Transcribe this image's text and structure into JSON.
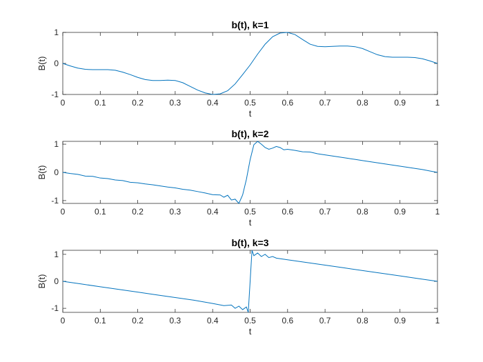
{
  "chart_data": [
    {
      "type": "line",
      "title": "b(t), k=1",
      "xlabel": "t",
      "ylabel": "B(t)",
      "xlim": [
        0,
        1
      ],
      "ylim": [
        -1,
        1
      ],
      "xticks": [
        "0",
        "0.1",
        "0.2",
        "0.3",
        "0.4",
        "0.5",
        "0.6",
        "0.7",
        "0.8",
        "0.9",
        "1"
      ],
      "yticks": [
        "-1",
        "0",
        "1"
      ],
      "grid": false,
      "color": "#0072BD",
      "series": [
        {
          "x": [
            0,
            0.02,
            0.04,
            0.06,
            0.08,
            0.1,
            0.12,
            0.14,
            0.16,
            0.18,
            0.2,
            0.22,
            0.24,
            0.26,
            0.28,
            0.3,
            0.32,
            0.34,
            0.36,
            0.38,
            0.4,
            0.42,
            0.44,
            0.46,
            0.48,
            0.5,
            0.52,
            0.54,
            0.56,
            0.58,
            0.6,
            0.62,
            0.64,
            0.66,
            0.68,
            0.7,
            0.72,
            0.74,
            0.76,
            0.78,
            0.8,
            0.82,
            0.84,
            0.86,
            0.88,
            0.9,
            0.92,
            0.94,
            0.96,
            0.98,
            1.0
          ],
          "y": [
            0.0,
            -0.08,
            -0.15,
            -0.19,
            -0.2,
            -0.2,
            -0.2,
            -0.22,
            -0.28,
            -0.36,
            -0.45,
            -0.52,
            -0.55,
            -0.55,
            -0.54,
            -0.55,
            -0.62,
            -0.74,
            -0.86,
            -0.95,
            -1.0,
            -0.98,
            -0.88,
            -0.66,
            -0.36,
            -0.05,
            0.3,
            0.62,
            0.86,
            0.98,
            1.0,
            0.93,
            0.77,
            0.62,
            0.55,
            0.54,
            0.55,
            0.56,
            0.56,
            0.54,
            0.48,
            0.38,
            0.28,
            0.22,
            0.2,
            0.2,
            0.2,
            0.19,
            0.15,
            0.08,
            0.0
          ]
        }
      ]
    },
    {
      "type": "line",
      "title": "b(t), k=2",
      "xlabel": "t",
      "ylabel": "B(t)",
      "xlim": [
        0,
        1
      ],
      "ylim": [
        -1.1,
        1.1
      ],
      "xticks": [
        "0",
        "0.1",
        "0.2",
        "0.3",
        "0.4",
        "0.5",
        "0.6",
        "0.7",
        "0.8",
        "0.9",
        "1"
      ],
      "yticks": [
        "-1",
        "0",
        "1"
      ],
      "grid": false,
      "color": "#0072BD",
      "series": [
        {
          "x": [
            0,
            0.02,
            0.04,
            0.06,
            0.08,
            0.1,
            0.12,
            0.14,
            0.16,
            0.18,
            0.2,
            0.22,
            0.24,
            0.26,
            0.28,
            0.3,
            0.32,
            0.34,
            0.36,
            0.38,
            0.4,
            0.42,
            0.43,
            0.44,
            0.45,
            0.46,
            0.47,
            0.48,
            0.49,
            0.5,
            0.51,
            0.52,
            0.53,
            0.54,
            0.55,
            0.56,
            0.57,
            0.58,
            0.59,
            0.6,
            0.62,
            0.64,
            0.66,
            0.68,
            0.7,
            0.72,
            0.74,
            0.76,
            0.78,
            0.8,
            0.82,
            0.84,
            0.86,
            0.88,
            0.9,
            0.92,
            0.94,
            0.96,
            0.98,
            1.0
          ],
          "y": [
            0.0,
            -0.04,
            -0.07,
            -0.13,
            -0.14,
            -0.2,
            -0.22,
            -0.27,
            -0.29,
            -0.35,
            -0.37,
            -0.41,
            -0.44,
            -0.48,
            -0.52,
            -0.55,
            -0.6,
            -0.63,
            -0.68,
            -0.73,
            -0.79,
            -0.8,
            -0.88,
            -0.81,
            -0.98,
            -0.95,
            -1.1,
            -0.8,
            -0.25,
            0.45,
            0.98,
            1.1,
            1.0,
            0.88,
            0.82,
            0.86,
            0.92,
            0.88,
            0.8,
            0.82,
            0.78,
            0.73,
            0.72,
            0.66,
            0.62,
            0.58,
            0.54,
            0.5,
            0.46,
            0.42,
            0.38,
            0.34,
            0.3,
            0.26,
            0.22,
            0.18,
            0.14,
            0.1,
            0.05,
            0.0
          ]
        }
      ]
    },
    {
      "type": "line",
      "title": "b(t), k=3",
      "xlabel": "t",
      "ylabel": "B(t)",
      "xlim": [
        0,
        1
      ],
      "ylim": [
        -1.15,
        1.15
      ],
      "xticks": [
        "0",
        "0.1",
        "0.2",
        "0.3",
        "0.4",
        "0.5",
        "0.6",
        "0.7",
        "0.8",
        "0.9",
        "1"
      ],
      "yticks": [
        "-1",
        "0",
        "1"
      ],
      "grid": false,
      "color": "#0072BD",
      "series": [
        {
          "x": [
            0,
            0.05,
            0.1,
            0.15,
            0.2,
            0.25,
            0.3,
            0.35,
            0.4,
            0.43,
            0.45,
            0.46,
            0.47,
            0.48,
            0.49,
            0.495,
            0.5,
            0.505,
            0.51,
            0.52,
            0.53,
            0.54,
            0.55,
            0.56,
            0.57,
            0.6,
            0.65,
            0.7,
            0.75,
            0.8,
            0.85,
            0.9,
            0.95,
            1.0
          ],
          "y": [
            0.0,
            -0.1,
            -0.2,
            -0.3,
            -0.4,
            -0.5,
            -0.6,
            -0.7,
            -0.82,
            -0.9,
            -0.88,
            -1.0,
            -0.92,
            -1.05,
            -0.95,
            -1.15,
            0.0,
            1.15,
            0.95,
            1.05,
            0.92,
            1.0,
            0.88,
            0.92,
            0.86,
            0.8,
            0.7,
            0.6,
            0.5,
            0.4,
            0.3,
            0.2,
            0.1,
            0.0
          ]
        }
      ]
    }
  ]
}
